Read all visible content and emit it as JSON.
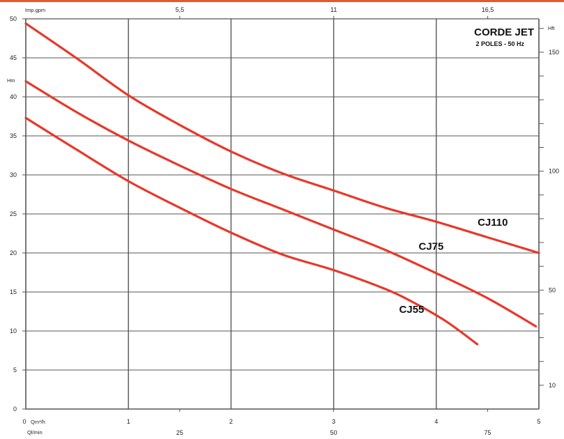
{
  "chart_data": {
    "type": "line",
    "title": "CORDE JET",
    "subtitle": "2 POLES - 50 Hz",
    "colors": {
      "curve": "#e8382a",
      "grid": "#555555",
      "top_bar": "#e8572a"
    },
    "x_axis": {
      "unit": "Qm³/h",
      "range": [
        0,
        5
      ],
      "ticks": [
        "0",
        "1",
        "2",
        "3",
        "4",
        "5"
      ]
    },
    "x_axis_secondary_bottom": {
      "unit": "Ql/min",
      "ticks": [
        "25",
        "50",
        "75"
      ]
    },
    "x_axis_top": {
      "unit": "Imp.gpm",
      "ticks": [
        "5,5",
        "11",
        "16,5"
      ]
    },
    "y_axis_left": {
      "unit": "Hm",
      "range": [
        0,
        50
      ],
      "ticks": [
        "0",
        "5",
        "10",
        "15",
        "20",
        "25",
        "30",
        "35",
        "40",
        "45",
        "50"
      ]
    },
    "y_axis_right": {
      "unit": "Hft",
      "ticks": [
        "10",
        "50",
        "100",
        "150"
      ]
    },
    "grid": true,
    "series": [
      {
        "name": "CJ110",
        "x": [
          0,
          0.5,
          1,
          1.5,
          2,
          2.5,
          3,
          3.5,
          4,
          4.5,
          5
        ],
        "y": [
          49.4,
          44.9,
          40.2,
          36.4,
          33.0,
          30.2,
          28.0,
          25.8,
          24.0,
          22.0,
          20.0
        ]
      },
      {
        "name": "CJ75",
        "x": [
          0,
          0.5,
          1,
          1.5,
          2,
          2.5,
          3,
          3.5,
          4,
          4.5,
          4.97
        ],
        "y": [
          42.0,
          38.0,
          34.4,
          31.2,
          28.2,
          25.6,
          23.0,
          20.4,
          17.4,
          14.2,
          10.6
        ]
      },
      {
        "name": "CJ55",
        "x": [
          0,
          0.5,
          1,
          1.5,
          2,
          2.5,
          3,
          3.5,
          3.8,
          4.1,
          4.4
        ],
        "y": [
          37.3,
          33.2,
          29.2,
          25.8,
          22.6,
          19.8,
          17.8,
          15.4,
          13.5,
          11.2,
          8.3
        ]
      }
    ],
    "series_labels": [
      "CJ110",
      "CJ75",
      "CJ55"
    ]
  }
}
